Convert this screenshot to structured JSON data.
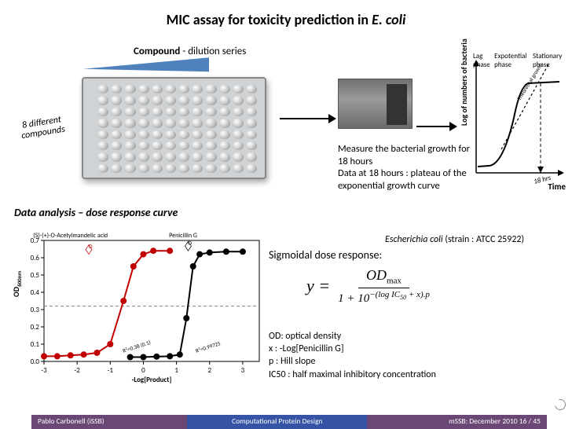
{
  "title_prefix": "MIC assay for toxicity prediction in ",
  "title_em": "E. coli",
  "compound_label_b": "Compound",
  "compound_label_rest": "  - dilution series",
  "wedge_color": "#4f81bd",
  "wedge_border": "#2f5b8f",
  "rotated_l1": "8 different",
  "rotated_l2": "compounds",
  "measure": {
    "l1": "Measure the bacterial growth for 18 hours",
    "l2": "Data at 18 hours : plateau of the exponential growth curve"
  },
  "growth": {
    "ylabel": "Log of numbers of bacteria",
    "xlabel": "Time",
    "phase_labels": [
      "Lag phase",
      "Expotential phase",
      "Stationary phase"
    ],
    "annot": "18 hrs",
    "axis_color": "#000000",
    "curve_color": "#000000",
    "theoretical_style": "dashed"
  },
  "data_analysis": "Data analysis – dose response curve",
  "dose_plot": {
    "type": "line",
    "xlabel": "-Log[Product]",
    "ylabel": "OD600nm",
    "xlim": [
      -3,
      3.5
    ],
    "ylim": [
      0,
      0.7
    ],
    "yticks": [
      0.0,
      0.1,
      0.2,
      0.3,
      0.4,
      0.5,
      0.6,
      0.7
    ],
    "xticks": [
      -3,
      -2,
      -1,
      0,
      1,
      2,
      3
    ],
    "series": [
      {
        "name": "(S)-(+)-O-Acetylmandelic acid",
        "color": "#c00000",
        "x": [
          -3,
          -2.6,
          -2.2,
          -1.8,
          -1.4,
          -1.0,
          -0.6,
          -0.3,
          0.0,
          0.3,
          0.8
        ],
        "y": [
          0.03,
          0.03,
          0.035,
          0.04,
          0.05,
          0.1,
          0.35,
          0.55,
          0.62,
          0.64,
          0.64
        ],
        "fit_label": "R²=0.38 (0.1)"
      },
      {
        "name": "Penicillin G",
        "color": "#000000",
        "x": [
          -0.4,
          0.0,
          0.4,
          0.8,
          1.1,
          1.3,
          1.5,
          1.7,
          2.0,
          2.5,
          3.0
        ],
        "y": [
          0.025,
          0.025,
          0.028,
          0.03,
          0.04,
          0.25,
          0.55,
          0.62,
          0.63,
          0.635,
          0.635
        ],
        "fit_label": "R²=0.99725"
      }
    ],
    "dashed_color": "#7f7f7f",
    "dashed_y": 0.32,
    "bg": "#ffffff",
    "axis": "#000000",
    "marker": "circle",
    "marker_size": 4,
    "line_width": 2
  },
  "sigmoid_label": "Sigmoidal dose response:",
  "strain_prefix": "Escherichia coli ",
  "strain_rest": "(strain : ATCC 25922)",
  "equation": {
    "lhs": "y =",
    "num": "OD",
    "num_sub": "max",
    "den_pre": "1 + 10",
    "exp": "−(log IC",
    "exp_sub": "50",
    "exp_tail": " + x).p"
  },
  "od_defs": [
    "OD: optical density",
    "x : -Log[Penicillin G]",
    "p : Hill slope",
    "IC50 : half maximal inhibitory concentration"
  ],
  "footer": {
    "left": "Pablo Carbonell  (iSSB)",
    "mid": "Computational Protein Design",
    "right": "mSSB: December 2010      16 / 45",
    "colA": "#6b4775",
    "colB": "#3554a5"
  }
}
